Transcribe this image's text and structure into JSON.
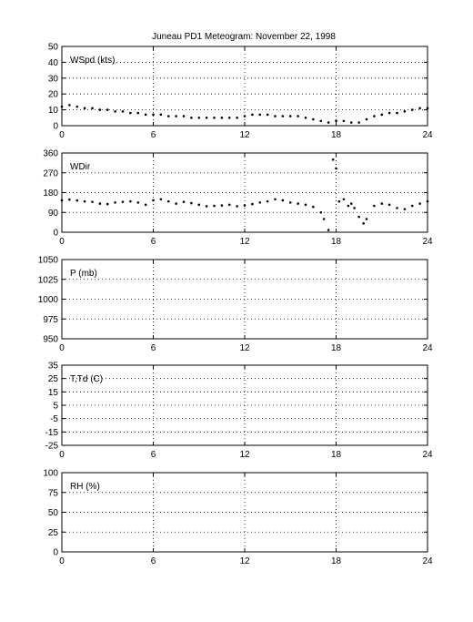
{
  "figure": {
    "title": "Juneau PD1 Meteogram:  November 22, 1998"
  },
  "chart_data": [
    {
      "type": "scatter",
      "panel_label": "WSpd (kts)",
      "xlim": [
        0,
        24
      ],
      "xticks": [
        0,
        6,
        12,
        18,
        24
      ],
      "ylim": [
        0,
        50
      ],
      "yticks": [
        0,
        10,
        20,
        30,
        40,
        50
      ],
      "grid": true,
      "series": [
        {
          "x": [
            0,
            0.5,
            1,
            1.5,
            2,
            2.5,
            3,
            3.5,
            4,
            4.5,
            5,
            5.5,
            6,
            6.5,
            7,
            7.5,
            8,
            8.5,
            9,
            9.5,
            10,
            10.5,
            11,
            11.5,
            12,
            12.5,
            13,
            13.5,
            14,
            14.5,
            15,
            15.5,
            16,
            16.5,
            17,
            17.5,
            18,
            18.5,
            19,
            19.5,
            20,
            20.5,
            21,
            21.5,
            22,
            22.5,
            23,
            23.5,
            24
          ],
          "y": [
            12,
            13,
            12,
            11,
            11,
            10,
            10,
            9,
            9,
            8,
            8,
            7,
            7,
            7,
            6,
            6,
            6,
            5,
            5,
            5,
            5,
            5,
            5,
            5,
            6,
            7,
            7,
            7,
            6,
            6,
            6,
            6,
            5,
            4,
            3,
            2,
            3,
            3,
            2,
            2,
            4,
            6,
            7,
            8,
            8,
            9,
            10,
            11,
            11
          ]
        }
      ]
    },
    {
      "type": "scatter",
      "panel_label": "WDir",
      "xlim": [
        0,
        24
      ],
      "xticks": [
        0,
        6,
        12,
        18,
        24
      ],
      "ylim": [
        0,
        360
      ],
      "yticks": [
        0,
        90,
        180,
        270,
        360
      ],
      "grid": true,
      "series": [
        {
          "x": [
            0,
            0.5,
            1,
            1.5,
            2,
            2.5,
            3,
            3.5,
            4,
            4.5,
            5,
            5.5,
            6,
            6.5,
            7,
            7.5,
            8,
            8.5,
            9,
            9.5,
            10,
            10.5,
            11,
            11.5,
            12,
            12.5,
            13,
            13.5,
            14,
            14.5,
            15,
            15.5,
            16,
            16.5,
            17,
            17.2,
            17.5,
            17.8,
            18,
            18.2,
            18.5,
            18.8,
            19,
            19.2,
            19.5,
            19.8,
            20,
            20.5,
            21,
            21.5,
            22,
            22.5,
            23,
            23.5,
            24
          ],
          "y": [
            145,
            148,
            144,
            140,
            138,
            130,
            128,
            135,
            138,
            140,
            135,
            125,
            145,
            150,
            140,
            130,
            138,
            132,
            125,
            118,
            120,
            122,
            125,
            118,
            122,
            128,
            135,
            140,
            150,
            145,
            135,
            130,
            125,
            115,
            90,
            60,
            10,
            330,
            290,
            140,
            150,
            120,
            130,
            110,
            70,
            40,
            60,
            120,
            130,
            125,
            110,
            105,
            120,
            130,
            140
          ]
        }
      ]
    },
    {
      "type": "scatter",
      "panel_label": "P (mb)",
      "xlim": [
        0,
        24
      ],
      "xticks": [
        0,
        6,
        12,
        18,
        24
      ],
      "ylim": [
        950,
        1050
      ],
      "yticks": [
        950,
        975,
        1000,
        1025,
        1050
      ],
      "grid": true,
      "series": []
    },
    {
      "type": "scatter",
      "panel_label": "T,Td (C)",
      "xlim": [
        0,
        24
      ],
      "xticks": [
        0,
        6,
        12,
        18,
        24
      ],
      "ylim": [
        -25,
        35
      ],
      "yticks": [
        -25,
        -15,
        -5,
        5,
        15,
        25,
        35
      ],
      "grid": true,
      "series": []
    },
    {
      "type": "scatter",
      "panel_label": "RH (%)",
      "xlim": [
        0,
        24
      ],
      "xticks": [
        0,
        6,
        12,
        18,
        24
      ],
      "ylim": [
        0,
        100
      ],
      "yticks": [
        0,
        25,
        50,
        75,
        100
      ],
      "grid": true,
      "series": []
    }
  ]
}
